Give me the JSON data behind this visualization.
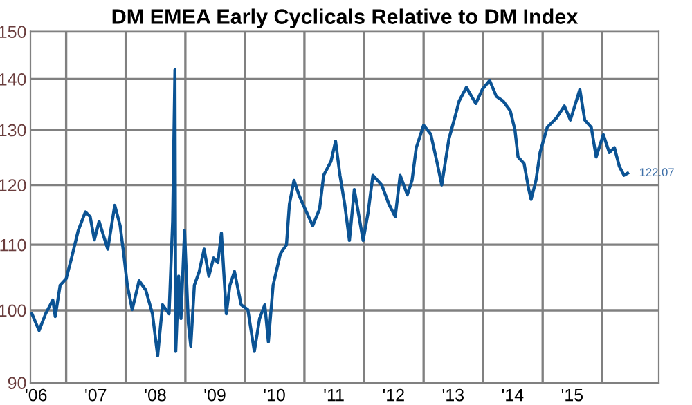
{
  "chart_data": {
    "type": "line",
    "title": "DM EMEA Early Cyclicals Relative to DM Index",
    "x": [
      "2006-06-05",
      "2006-07-19",
      "2006-08-28",
      "2006-10-11",
      "2006-10-26",
      "2006-11-25",
      "2007-01-01",
      "2007-02-03",
      "2007-03-16",
      "2007-04-29",
      "2007-05-28",
      "2007-06-23",
      "2007-07-22",
      "2007-09-13",
      "2007-10-26",
      "2007-11-28",
      "2007-12-23",
      "2008-01-11",
      "2008-02-10",
      "2008-03-23",
      "2008-05-03",
      "2008-06-13",
      "2008-07-15",
      "2008-08-14",
      "2008-09-23",
      "2008-10-15",
      "2008-10-29",
      "2008-11-03",
      "2008-11-21",
      "2008-12-05",
      "2008-12-27",
      "2009-01-19",
      "2009-02-03",
      "2009-02-25",
      "2009-03-27",
      "2009-04-26",
      "2009-05-25",
      "2009-06-23",
      "2009-07-19",
      "2009-08-10",
      "2009-09-09",
      "2009-10-01",
      "2009-10-29",
      "2009-12-09",
      "2010-01-19",
      "2010-02-28",
      "2010-04-01",
      "2010-05-03",
      "2010-05-25",
      "2010-06-23",
      "2010-08-07",
      "2010-09-13",
      "2010-10-01",
      "2010-10-29",
      "2010-11-28",
      "2010-12-23",
      "2011-02-21",
      "2011-04-04",
      "2011-04-29",
      "2011-06-13",
      "2011-07-11",
      "2011-08-07",
      "2011-09-05",
      "2011-10-04",
      "2011-11-03",
      "2011-11-28",
      "2011-12-27",
      "2012-01-26",
      "2012-02-25",
      "2012-04-19",
      "2012-06-02",
      "2012-07-11",
      "2012-08-10",
      "2012-09-23",
      "2012-10-22",
      "2012-11-17",
      "2013-01-01",
      "2013-02-14",
      "2013-03-23",
      "2013-04-22",
      "2013-06-05",
      "2013-07-15",
      "2013-08-07",
      "2013-09-20",
      "2013-11-17",
      "2013-12-27",
      "2014-02-10",
      "2014-03-23",
      "2014-05-03",
      "2014-06-16",
      "2014-07-15",
      "2014-08-03",
      "2014-09-09",
      "2014-10-08",
      "2014-10-22",
      "2014-11-21",
      "2014-12-16",
      "2015-01-29",
      "2015-03-27",
      "2015-05-14",
      "2015-06-20",
      "2015-08-17",
      "2015-09-16",
      "2015-10-26",
      "2015-11-25",
      "2016-01-08",
      "2016-02-14",
      "2016-03-16",
      "2016-04-15",
      "2016-05-14",
      "2016-06-05"
    ],
    "series": [
      {
        "color": "#0b5394",
        "values": [
          99.5,
          97.1,
          99.5,
          101.5,
          99.1,
          103.7,
          104.7,
          107.9,
          112.3,
          115.4,
          114.6,
          110.8,
          113.8,
          109.3,
          116.5,
          113.1,
          107.9,
          103.7,
          100.1,
          104.4,
          103.0,
          99.5,
          93.6,
          100.8,
          99.5,
          113.8,
          141.9,
          94.2,
          105.1,
          98.8,
          112.3,
          98.2,
          94.9,
          103.7,
          105.8,
          109.3,
          105.1,
          107.9,
          107.2,
          111.9,
          99.5,
          103.7,
          105.8,
          100.8,
          100.1,
          94.2,
          98.8,
          100.8,
          95.5,
          103.7,
          108.6,
          110.0,
          116.7,
          120.8,
          118.3,
          116.7,
          113.1,
          115.9,
          121.7,
          124.2,
          127.9,
          121.7,
          116.7,
          110.7,
          119.2,
          115.2,
          110.7,
          115.2,
          121.7,
          120.0,
          116.7,
          114.6,
          121.7,
          118.3,
          120.8,
          126.7,
          130.9,
          129.2,
          124.2,
          120.0,
          128.3,
          132.8,
          135.6,
          138.3,
          135.1,
          137.9,
          139.7,
          136.5,
          135.6,
          133.7,
          130.0,
          125.0,
          123.8,
          119.2,
          117.5,
          120.8,
          125.8,
          130.5,
          132.3,
          134.6,
          131.9,
          137.9,
          131.9,
          130.5,
          125.0,
          129.1,
          125.8,
          126.7,
          123.3,
          121.7,
          122.07
        ]
      }
    ],
    "log": "y",
    "ylim": [
      90,
      150
    ],
    "yticks": [
      90,
      100,
      110,
      120,
      130,
      140,
      150
    ],
    "xlim": [
      "2006-05-27",
      "2016-12-13"
    ],
    "xticks": [
      {
        "value": "2006-07-01",
        "label": "'06"
      },
      {
        "value": "2007-01-01",
        "label": null
      },
      {
        "value": "2007-07-01",
        "label": "'07"
      },
      {
        "value": "2008-01-01",
        "label": null
      },
      {
        "value": "2008-07-01",
        "label": "'08"
      },
      {
        "value": "2009-01-01",
        "label": null
      },
      {
        "value": "2009-07-01",
        "label": "'09"
      },
      {
        "value": "2010-01-01",
        "label": null
      },
      {
        "value": "2010-07-01",
        "label": "'10"
      },
      {
        "value": "2011-01-01",
        "label": null
      },
      {
        "value": "2011-07-01",
        "label": "'11"
      },
      {
        "value": "2012-01-01",
        "label": null
      },
      {
        "value": "2012-07-01",
        "label": "'12"
      },
      {
        "value": "2013-01-01",
        "label": null
      },
      {
        "value": "2013-07-01",
        "label": "'13"
      },
      {
        "value": "2014-01-01",
        "label": null
      },
      {
        "value": "2014-07-01",
        "label": "'14"
      },
      {
        "value": "2015-01-01",
        "label": null
      },
      {
        "value": "2015-07-01",
        "label": "'15"
      },
      {
        "value": "2016-01-01",
        "label": null
      }
    ],
    "grid": true,
    "annotations": [
      {
        "text": "122.07",
        "x": "2016-06-05",
        "y": 122.07
      }
    ]
  }
}
